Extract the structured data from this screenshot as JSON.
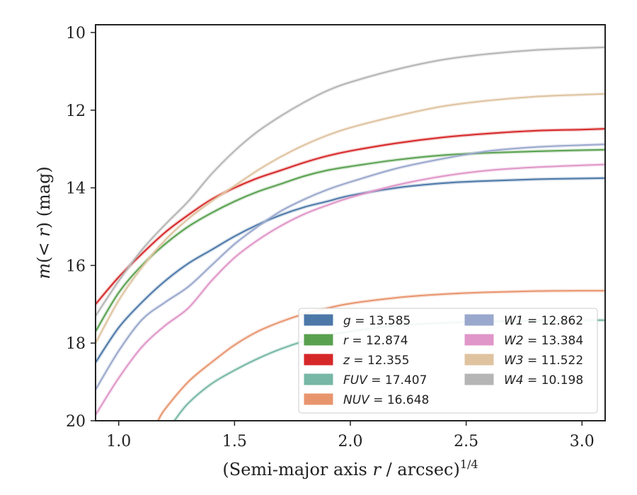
{
  "chart_data": {
    "type": "line",
    "title": "",
    "xlabel_main": "(Semi-major axis ",
    "xlabel_var": "r",
    "xlabel_tail": " / arcsec)",
    "xlabel_sup": "1/4",
    "ylabel_m": "m",
    "ylabel_paren_open": "(",
    "ylabel_lt": "< ",
    "ylabel_r": "r",
    "ylabel_rest": ") (mag)",
    "xlim": [
      0.9,
      3.1
    ],
    "ylim_inverted": [
      20,
      9.8
    ],
    "xticks": [
      1.0,
      1.5,
      2.0,
      2.5,
      3.0
    ],
    "xtick_labels": [
      "1.0",
      "1.5",
      "2.0",
      "2.5",
      "3.0"
    ],
    "yticks": [
      10,
      12,
      14,
      16,
      18,
      20
    ],
    "ytick_labels": [
      "10",
      "12",
      "14",
      "16",
      "18",
      "20"
    ],
    "grid": false,
    "legend_placement": "lower-right",
    "series": [
      {
        "name": "g",
        "label_var": "g",
        "label_val": " = 13.585",
        "color": "#4c78a8",
        "x": [
          0.9,
          1.0,
          1.1,
          1.2,
          1.3,
          1.4,
          1.5,
          1.6,
          1.7,
          1.8,
          1.9,
          2.0,
          2.2,
          2.4,
          2.6,
          2.8,
          3.0,
          3.1
        ],
        "y": [
          18.5,
          17.6,
          16.95,
          16.4,
          15.95,
          15.6,
          15.25,
          14.95,
          14.7,
          14.5,
          14.35,
          14.2,
          14.0,
          13.88,
          13.82,
          13.78,
          13.76,
          13.75
        ]
      },
      {
        "name": "r",
        "label_var": "r",
        "label_val": " = 12.874",
        "color": "#59a14f",
        "x": [
          0.9,
          1.0,
          1.1,
          1.2,
          1.3,
          1.4,
          1.5,
          1.6,
          1.7,
          1.8,
          1.9,
          2.0,
          2.2,
          2.4,
          2.6,
          2.8,
          3.0,
          3.1
        ],
        "y": [
          17.7,
          16.7,
          16.0,
          15.45,
          15.0,
          14.65,
          14.35,
          14.1,
          13.9,
          13.7,
          13.55,
          13.45,
          13.28,
          13.16,
          13.1,
          13.06,
          13.03,
          13.02
        ]
      },
      {
        "name": "z",
        "label_var": "z",
        "label_val": " = 12.355",
        "color": "#d62728",
        "x": [
          0.9,
          1.0,
          1.1,
          1.2,
          1.3,
          1.4,
          1.5,
          1.6,
          1.7,
          1.8,
          1.9,
          2.0,
          2.2,
          2.4,
          2.6,
          2.8,
          3.0,
          3.1
        ],
        "y": [
          17.0,
          16.3,
          15.7,
          15.15,
          14.7,
          14.3,
          14.0,
          13.75,
          13.55,
          13.35,
          13.18,
          13.05,
          12.85,
          12.7,
          12.6,
          12.53,
          12.5,
          12.48
        ]
      },
      {
        "name": "FUV",
        "label_var": "FUV",
        "label_val": " = 17.407",
        "color": "#76b7a5",
        "x": [
          1.24,
          1.3,
          1.4,
          1.5,
          1.6,
          1.7,
          1.8,
          1.9,
          2.0,
          2.2,
          2.4,
          2.6,
          2.8,
          3.0,
          3.1
        ],
        "y": [
          20.0,
          19.55,
          19.05,
          18.7,
          18.4,
          18.15,
          17.95,
          17.8,
          17.7,
          17.55,
          17.48,
          17.44,
          17.42,
          17.41,
          17.41
        ]
      },
      {
        "name": "NUV",
        "label_var": "NUV",
        "label_val": " = 16.648",
        "color": "#e8956e",
        "x": [
          1.17,
          1.2,
          1.3,
          1.4,
          1.5,
          1.6,
          1.7,
          1.8,
          1.9,
          2.0,
          2.2,
          2.4,
          2.6,
          2.8,
          3.0,
          3.1
        ],
        "y": [
          20.0,
          19.7,
          19.0,
          18.5,
          18.05,
          17.7,
          17.45,
          17.25,
          17.1,
          16.98,
          16.83,
          16.74,
          16.69,
          16.66,
          16.65,
          16.65
        ]
      },
      {
        "name": "W1",
        "label_var": "W1",
        "label_val": " = 12.862",
        "color": "#9aa8cd",
        "x": [
          0.9,
          1.0,
          1.1,
          1.2,
          1.3,
          1.4,
          1.5,
          1.6,
          1.7,
          1.8,
          1.9,
          2.0,
          2.2,
          2.4,
          2.6,
          2.8,
          3.0,
          3.1
        ],
        "y": [
          19.2,
          18.2,
          17.4,
          16.95,
          16.55,
          16.0,
          15.45,
          15.0,
          14.6,
          14.3,
          14.05,
          13.85,
          13.5,
          13.25,
          13.05,
          12.95,
          12.9,
          12.88
        ]
      },
      {
        "name": "W2",
        "label_var": "W2",
        "label_val": " = 13.384",
        "color": "#e096c8",
        "x": [
          0.9,
          1.0,
          1.1,
          1.2,
          1.3,
          1.4,
          1.5,
          1.6,
          1.7,
          1.8,
          1.9,
          2.0,
          2.2,
          2.4,
          2.6,
          2.8,
          3.0,
          3.1
        ],
        "y": [
          19.85,
          18.9,
          18.1,
          17.55,
          17.1,
          16.4,
          15.8,
          15.35,
          14.98,
          14.68,
          14.45,
          14.25,
          13.93,
          13.7,
          13.55,
          13.47,
          13.42,
          13.4
        ]
      },
      {
        "name": "W3",
        "label_var": "W3",
        "label_val": " = 11.522",
        "color": "#dfc3a0",
        "x": [
          0.9,
          1.0,
          1.1,
          1.2,
          1.3,
          1.4,
          1.5,
          1.6,
          1.7,
          1.8,
          1.9,
          2.0,
          2.2,
          2.4,
          2.6,
          2.8,
          3.0,
          3.1
        ],
        "y": [
          18.0,
          16.9,
          16.05,
          15.35,
          14.8,
          14.35,
          13.95,
          13.55,
          13.2,
          12.9,
          12.65,
          12.45,
          12.15,
          11.9,
          11.75,
          11.65,
          11.6,
          11.58
        ]
      },
      {
        "name": "W4",
        "label_var": "W4",
        "label_val": " = 10.198",
        "color": "#b5b5b5",
        "x": [
          0.9,
          1.0,
          1.1,
          1.2,
          1.3,
          1.4,
          1.5,
          1.6,
          1.7,
          1.8,
          1.9,
          2.0,
          2.2,
          2.4,
          2.6,
          2.8,
          3.0,
          3.1
        ],
        "y": [
          17.3,
          16.4,
          15.6,
          14.95,
          14.35,
          13.65,
          13.05,
          12.55,
          12.15,
          11.8,
          11.5,
          11.28,
          10.95,
          10.7,
          10.55,
          10.45,
          10.4,
          10.38
        ]
      }
    ]
  }
}
